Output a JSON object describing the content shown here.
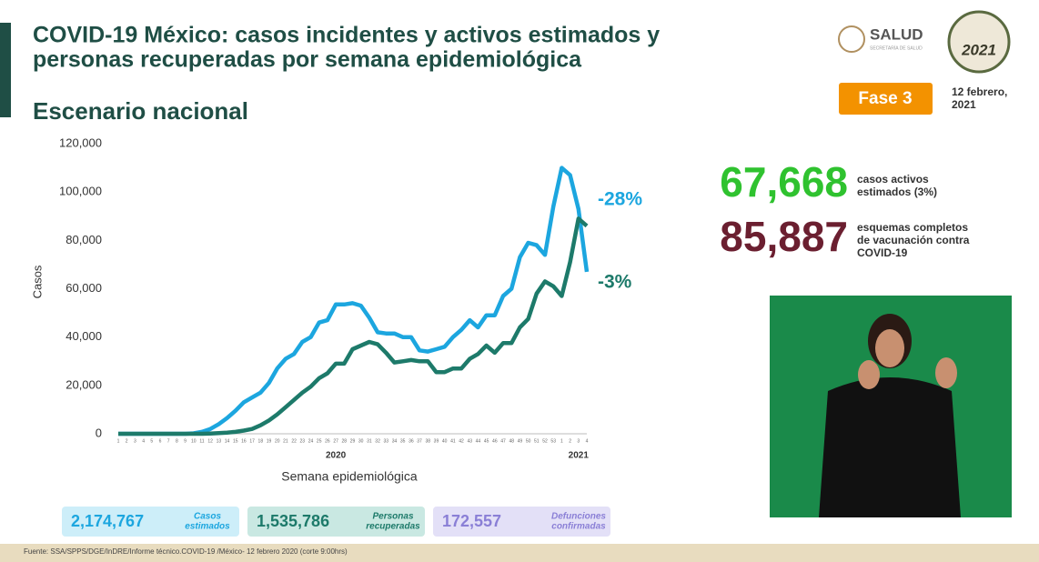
{
  "header": {
    "title_lines": [
      "COVID-19 México: casos incidentes y activos estimados y",
      "personas recuperadas por semana epidemiológica"
    ],
    "subtitle": "Escenario nacional",
    "logo": "SALUD",
    "logo_sub": "SECRETARÍA DE SALUD",
    "badge_year": "2021",
    "phase": "Fase 3",
    "date_lines": [
      "12 febrero,",
      "2021"
    ]
  },
  "chart_data": {
    "type": "line",
    "y_label": "Casos",
    "x_label": "Semana epidemiológica",
    "categories": [
      "1",
      "2",
      "3",
      "4",
      "5",
      "6",
      "7",
      "8",
      "9",
      "10",
      "11",
      "12",
      "13",
      "14",
      "15",
      "16",
      "17",
      "18",
      "19",
      "20",
      "21",
      "22",
      "23",
      "24",
      "25",
      "26",
      "27",
      "28",
      "29",
      "30",
      "31",
      "32",
      "33",
      "34",
      "35",
      "36",
      "37",
      "38",
      "39",
      "40",
      "41",
      "42",
      "43",
      "44",
      "45",
      "46",
      "47",
      "48",
      "49",
      "50",
      "51",
      "52",
      "53",
      "1",
      "2",
      "3",
      "4"
    ],
    "year_labels": [
      "2020",
      "2021"
    ],
    "series": [
      {
        "color": "#1ca6df",
        "end_label": "-28%",
        "values": [
          0,
          0,
          0,
          0,
          0,
          0,
          0,
          0,
          0,
          200,
          800,
          2000,
          4000,
          6500,
          9500,
          13000,
          15000,
          17000,
          21000,
          27000,
          31000,
          33000,
          38000,
          40000,
          46000,
          47000,
          53500,
          53500,
          54000,
          53000,
          48000,
          42000,
          41500,
          41500,
          40000,
          40000,
          34500,
          34000,
          35000,
          36000,
          40000,
          43000,
          47000,
          44000,
          49000,
          49000,
          57000,
          60000,
          73000,
          79000,
          78000,
          74000,
          94000,
          110000,
          107000,
          93000,
          67000
        ]
      },
      {
        "color": "#1d7a6a",
        "end_label": "-3%",
        "values": [
          0,
          0,
          0,
          0,
          0,
          0,
          0,
          0,
          0,
          0,
          0,
          100,
          300,
          500,
          800,
          1300,
          2000,
          3500,
          5500,
          8000,
          11000,
          14000,
          17000,
          19500,
          23000,
          25000,
          29000,
          29000,
          35000,
          36500,
          38000,
          37000,
          33500,
          29500,
          30000,
          30500,
          30000,
          30000,
          25500,
          25500,
          27000,
          27000,
          31000,
          33000,
          36500,
          33500,
          37500,
          37500,
          44000,
          47500,
          58000,
          63000,
          61000,
          57000,
          71000,
          89000,
          86000
        ]
      }
    ],
    "ylim": [
      0,
      120000
    ],
    "yticks": [
      0,
      {
        "value": 20000,
        "label": "20,000"
      },
      {
        "value": 40000,
        "label": "40,000"
      },
      {
        "value": 60000,
        "label": "60,000"
      },
      {
        "value": 80000,
        "label": "80,000"
      },
      {
        "value": 100000,
        "label": "100,000"
      },
      {
        "value": 120000,
        "label": "120,000"
      }
    ],
    "grid": false
  },
  "stats": [
    {
      "number": "67,668",
      "lines": [
        "casos activos",
        "estimados (3%)"
      ]
    },
    {
      "number": "85,887",
      "lines": [
        "esquemas completos",
        "de vacunación contra",
        "COVID-19"
      ]
    }
  ],
  "totals": [
    {
      "number": "2,174,767",
      "lines": [
        "Casos",
        "estimados"
      ]
    },
    {
      "number": "1,535,786",
      "lines": [
        "Personas",
        "recuperadas"
      ]
    },
    {
      "number": "172,557",
      "lines": [
        "Defunciones",
        "confirmadas"
      ]
    }
  ],
  "footer": "Fuente: SSA/SPPS/DGE/InDRE/Informe técnico.COVID-19 /México- 12 febrero 2020 (corte 9:00hrs)"
}
